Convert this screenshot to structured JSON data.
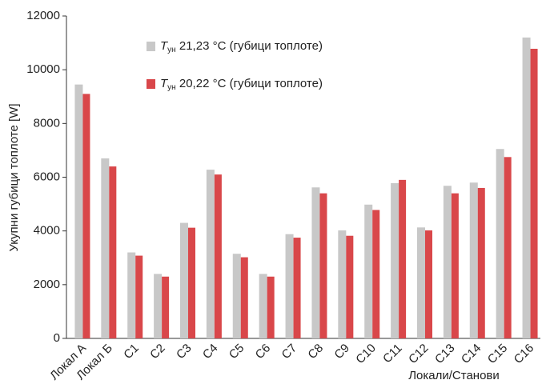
{
  "chart_data": {
    "type": "bar",
    "y_label": "Укупни губици топлоте [W]",
    "x_label": "Локали/Станови",
    "categories": [
      "Локал А",
      "Локал Б",
      "С1",
      "С2",
      "С3",
      "С4",
      "С5",
      "С6",
      "С7",
      "С8",
      "С9",
      "С10",
      "С11",
      "С12",
      "С13",
      "С14",
      "С15",
      "С16"
    ],
    "series": [
      {
        "name": "Tун 21,23 °C (губици топлоте)",
        "color": "#c8c8c8",
        "values": [
          9450,
          6700,
          3200,
          2400,
          4300,
          6280,
          3150,
          2400,
          3880,
          5620,
          4020,
          4980,
          5780,
          4130,
          5680,
          5800,
          7050,
          11200
        ]
      },
      {
        "name": "Tун 20,22 °C (губици топлоте)",
        "color": "#d9474a",
        "values": [
          9100,
          6400,
          3080,
          2300,
          4120,
          6100,
          3020,
          2300,
          3750,
          5400,
          3820,
          4780,
          5900,
          4020,
          5400,
          5600,
          6750,
          10780
        ]
      }
    ],
    "ylim": [
      0,
      12000
    ],
    "yticks": [
      0,
      2000,
      4000,
      6000,
      8000,
      10000,
      12000
    ],
    "grid": false
  }
}
